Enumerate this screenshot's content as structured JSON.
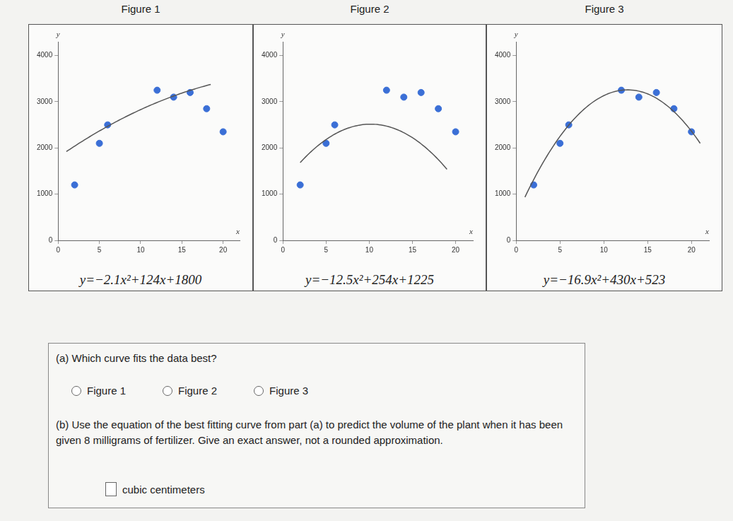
{
  "chart_data": [
    {
      "type": "scatter",
      "title": "Figure 1",
      "subtitle": "y=−2.1x²+124x+1800",
      "x_label": "x",
      "y_label": "y",
      "x": [
        2,
        5,
        6,
        12,
        14,
        16,
        18,
        20
      ],
      "values": [
        1200,
        2100,
        2500,
        3250,
        3100,
        3200,
        2850,
        2350
      ],
      "color": "#3b6fd6",
      "curve": {
        "a": -2.1,
        "b": 124,
        "c": 1800,
        "x_range": [
          1,
          18.5
        ],
        "color": "#555555"
      },
      "xlim": [
        0,
        22
      ],
      "xticks": [
        0,
        5,
        10,
        15,
        20
      ],
      "ylim": [
        0,
        4300
      ],
      "yticks": [
        0,
        1000,
        2000,
        3000,
        4000
      ],
      "grid": false
    },
    {
      "type": "scatter",
      "title": "Figure 2",
      "subtitle": "y=−12.5x²+254x+1225",
      "x_label": "x",
      "y_label": "y",
      "x": [
        2,
        5,
        6,
        12,
        14,
        16,
        18,
        20
      ],
      "values": [
        1200,
        2100,
        2500,
        3250,
        3100,
        3200,
        2850,
        2350
      ],
      "color": "#3b6fd6",
      "curve": {
        "a": -12.5,
        "b": 254,
        "c": 1225,
        "x_range": [
          2,
          19
        ],
        "color": "#555555"
      },
      "xlim": [
        0,
        22
      ],
      "xticks": [
        0,
        5,
        10,
        15,
        20
      ],
      "ylim": [
        0,
        4300
      ],
      "yticks": [
        0,
        1000,
        2000,
        3000,
        4000
      ],
      "grid": false
    },
    {
      "type": "scatter",
      "title": "Figure 3",
      "subtitle": "y=−16.9x²+430x+523",
      "x_label": "x",
      "y_label": "y",
      "x": [
        2,
        5,
        6,
        12,
        14,
        16,
        18,
        20
      ],
      "values": [
        1200,
        2100,
        2500,
        3250,
        3100,
        3200,
        2850,
        2350
      ],
      "color": "#3b6fd6",
      "curve": {
        "a": -16.9,
        "b": 430,
        "c": 523,
        "x_range": [
          1,
          21
        ],
        "color": "#555555"
      },
      "xlim": [
        0,
        22
      ],
      "xticks": [
        0,
        5,
        10,
        15,
        20
      ],
      "ylim": [
        0,
        4300
      ],
      "yticks": [
        0,
        1000,
        2000,
        3000,
        4000
      ],
      "grid": false
    }
  ],
  "questions": [
    {
      "label": "(a)",
      "text": "Which curve fits the data best?",
      "options": [
        "Figure 1",
        "Figure 2",
        "Figure 3"
      ]
    },
    {
      "label": "(b)",
      "text": "Use the equation of the best fitting curve from part (a) to predict the volume of the plant when it has been given 8 milligrams of fertilizer. Give an exact answer, not a rounded approximation.",
      "unit": "cubic centimeters"
    }
  ]
}
